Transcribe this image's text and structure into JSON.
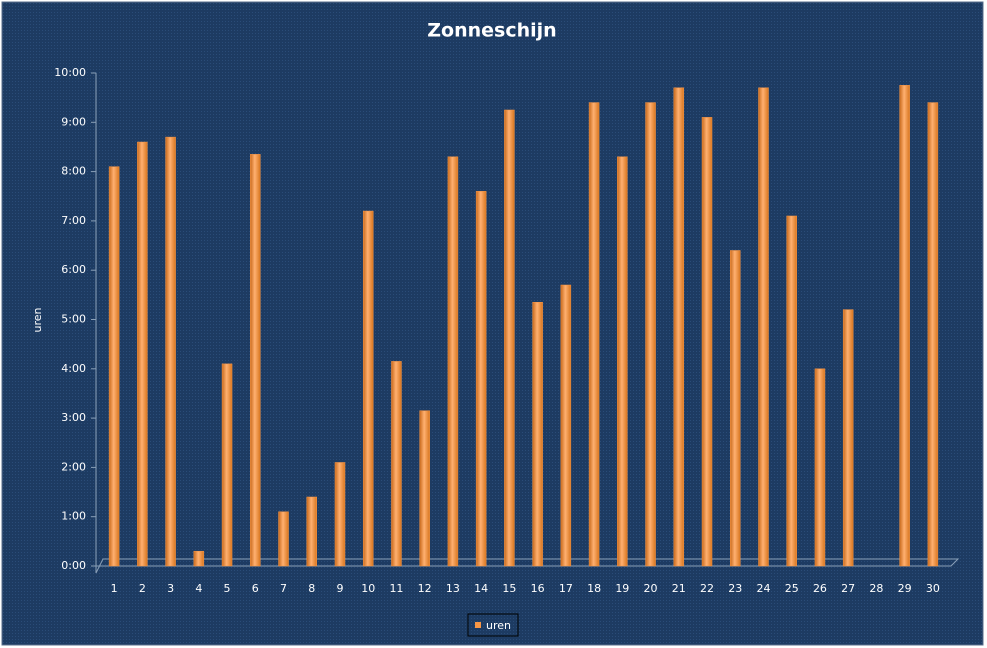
{
  "chart_data": {
    "type": "bar",
    "title": "Zonneschijn",
    "y_label": "uren",
    "categories": [
      "1",
      "2",
      "3",
      "4",
      "5",
      "6",
      "7",
      "8",
      "9",
      "10",
      "11",
      "12",
      "13",
      "14",
      "15",
      "16",
      "17",
      "18",
      "19",
      "20",
      "21",
      "22",
      "23",
      "24",
      "25",
      "26",
      "27",
      "28",
      "29",
      "30"
    ],
    "series": [
      {
        "name": "uren",
        "color": "#f79646",
        "values": [
          8.1,
          8.6,
          8.7,
          0.3,
          4.1,
          8.35,
          1.1,
          1.4,
          2.1,
          7.2,
          4.15,
          3.15,
          8.3,
          7.6,
          9.25,
          5.35,
          5.7,
          9.4,
          8.3,
          9.4,
          9.7,
          9.1,
          6.4,
          9.7,
          7.1,
          4.0,
          5.2,
          null,
          9.75,
          9.4
        ]
      }
    ],
    "ylim": [
      0,
      10
    ],
    "yticks": [
      {
        "value": 0,
        "label": "0:00"
      },
      {
        "value": 1,
        "label": "1:00"
      },
      {
        "value": 2,
        "label": "2:00"
      },
      {
        "value": 3,
        "label": "3:00"
      },
      {
        "value": 4,
        "label": "4:00"
      },
      {
        "value": 5,
        "label": "5:00"
      },
      {
        "value": 6,
        "label": "6:00"
      },
      {
        "value": 7,
        "label": "7:00"
      },
      {
        "value": 8,
        "label": "8:00"
      },
      {
        "value": 9,
        "label": "9:00"
      },
      {
        "value": 10,
        "label": "10:00"
      }
    ],
    "legend": "bottom"
  }
}
